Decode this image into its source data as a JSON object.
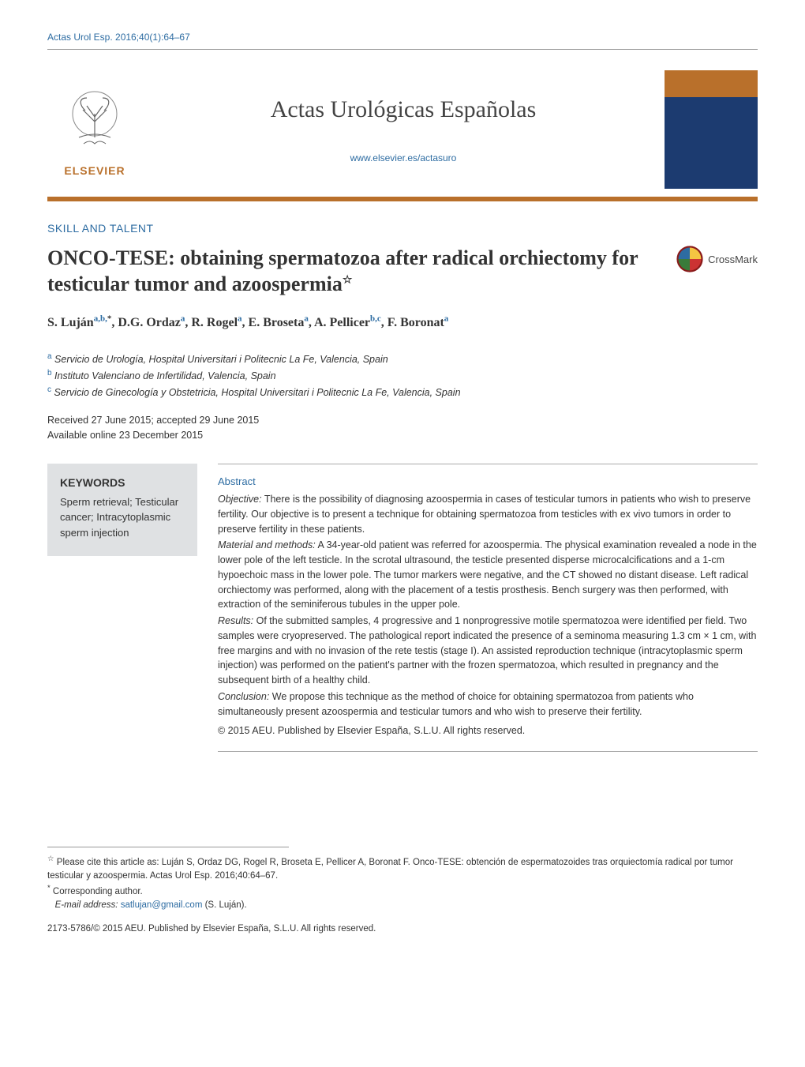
{
  "running_head": "Actas Urol Esp. 2016;40(1):64–67",
  "journal": {
    "title": "Actas Urológicas Españolas",
    "url": "www.elsevier.es/actasuro",
    "publisher_label": "ELSEVIER"
  },
  "section_label": "SKILL AND TALENT",
  "article": {
    "title": "ONCO-TESE: obtaining spermatozoa after radical orchiectomy for testicular tumor and azoospermia",
    "star": "☆"
  },
  "crossmark_label": "CrossMark",
  "authors_html": "S. Luján<sup>a,b,</sup><sup class='aststar'>*</sup>, D.G. Ordaz<sup>a</sup>, R. Rogel<sup>a</sup>, E. Broseta<sup>a</sup>, A. Pellicer<sup>b,c</sup>, F. Boronat<sup>a</sup>",
  "affiliations": [
    {
      "sup": "a",
      "text": "Servicio de Urología, Hospital Universitari i Politecnic La Fe, Valencia, Spain"
    },
    {
      "sup": "b",
      "text": "Instituto Valenciano de Infertilidad, Valencia, Spain"
    },
    {
      "sup": "c",
      "text": "Servicio de Ginecología y Obstetricia, Hospital Universitari i Politecnic La Fe, Valencia, Spain"
    }
  ],
  "dates": {
    "received_accepted": "Received 27 June 2015; accepted 29 June 2015",
    "online": "Available online 23 December 2015"
  },
  "keywords": {
    "heading": "KEYWORDS",
    "items": "Sperm retrieval; Testicular cancer; Intracytoplasmic sperm injection"
  },
  "abstract": {
    "heading": "Abstract",
    "objective_label": "Objective:",
    "objective": " There is the possibility of diagnosing azoospermia in cases of testicular tumors in patients who wish to preserve fertility. Our objective is to present a technique for obtaining spermatozoa from testicles with ex vivo tumors in order to preserve fertility in these patients.",
    "material_label": "Material and methods:",
    "material": " A 34-year-old patient was referred for azoospermia. The physical examination revealed a node in the lower pole of the left testicle. In the scrotal ultrasound, the testicle presented disperse microcalcifications and a 1-cm hypoechoic mass in the lower pole. The tumor markers were negative, and the CT showed no distant disease. Left radical orchiectomy was performed, along with the placement of a testis prosthesis. Bench surgery was then performed, with extraction of the seminiferous tubules in the upper pole.",
    "results_label": "Results:",
    "results": " Of the submitted samples, 4 progressive and 1 nonprogressive motile spermatozoa were identified per field. Two samples were cryopreserved. The pathological report indicated the presence of a seminoma measuring 1.3 cm × 1 cm, with free margins and with no invasion of the rete testis (stage I). An assisted reproduction technique (intracytoplasmic sperm injection) was performed on the patient's partner with the frozen spermatozoa, which resulted in pregnancy and the subsequent birth of a healthy child.",
    "conclusion_label": "Conclusion:",
    "conclusion": " We propose this technique as the method of choice for obtaining spermatozoa from patients who simultaneously present azoospermia and testicular tumors and who wish to preserve their fertility.",
    "copyright": "© 2015 AEU. Published by Elsevier España, S.L.U. All rights reserved."
  },
  "footnotes": {
    "cite_star": "☆",
    "cite_text": " Please cite this article as: Luján S, Ordaz DG, Rogel R, Broseta E, Pellicer A, Boronat F. Onco-TESE: obtención de espermatozoides tras orquiectomía radical por tumor testicular y azoospermia. Actas Urol Esp. 2016;40:64–67.",
    "corr_star": "*",
    "corr_text": " Corresponding author.",
    "email_label": "E-mail address: ",
    "email": "satlujan@gmail.com",
    "email_suffix": " (S. Luján)."
  },
  "issn_line": "2173-5786/© 2015 AEU. Published by Elsevier España, S.L.U. All rights reserved.",
  "colors": {
    "link": "#2d6ca2",
    "accent": "#b9702b",
    "panel_bg": "#dfe1e3",
    "cover_bg": "#1c3b70"
  }
}
